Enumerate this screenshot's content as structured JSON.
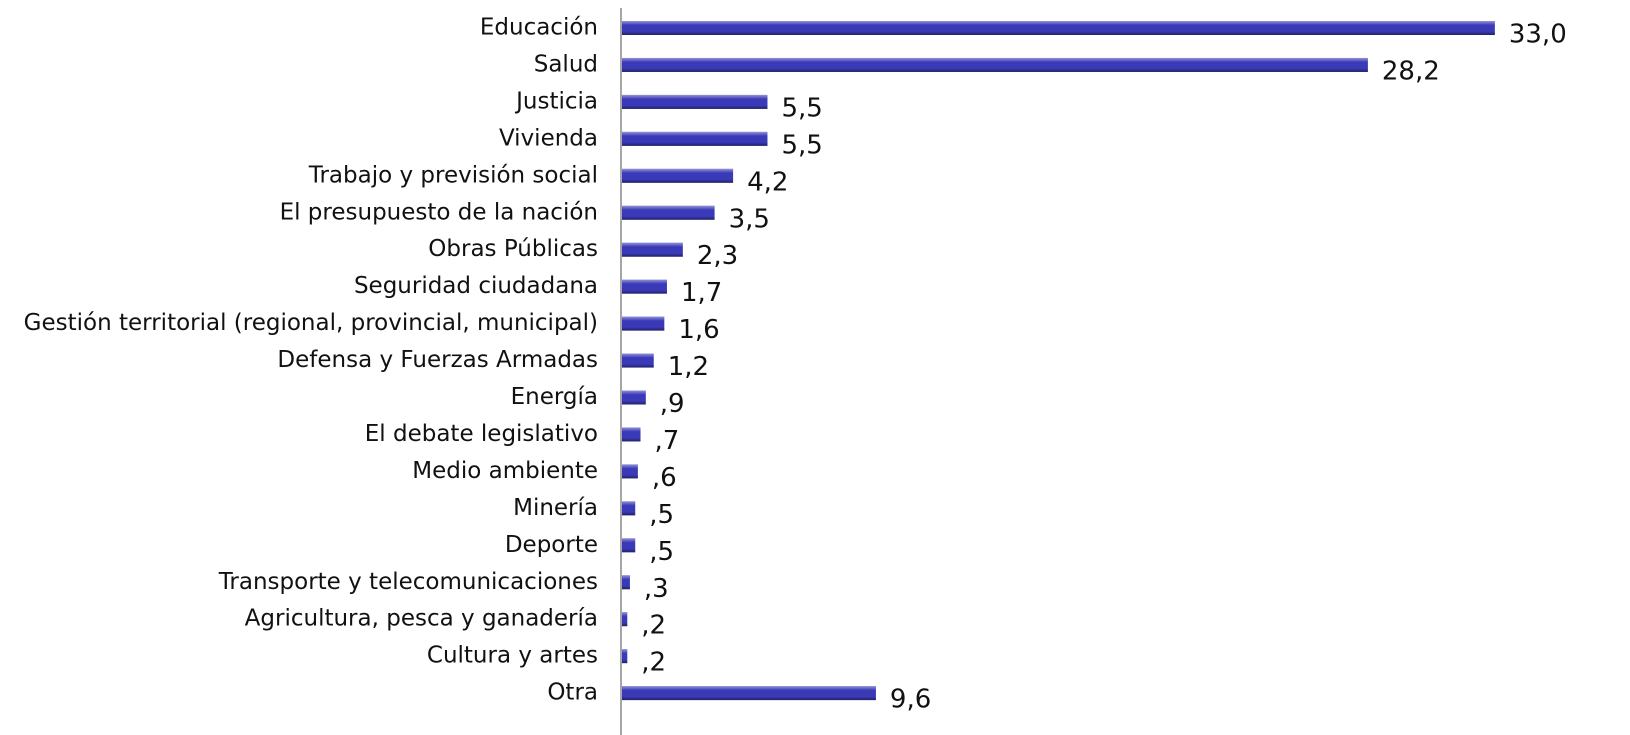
{
  "chart_data": {
    "type": "bar",
    "orientation": "horizontal",
    "color": "#3a3ab8",
    "categories": [
      "Educación",
      "Salud",
      "Justicia",
      "Vivienda",
      "Trabajo y previsión social",
      "El presupuesto de la nación",
      "Obras Públicas",
      "Seguridad ciudadana",
      "Gestión territorial (regional, provincial, municipal)",
      "Defensa y Fuerzas Armadas",
      "Energía",
      "El debate legislativo",
      "Medio ambiente",
      "Minería",
      "Deporte",
      "Transporte y telecomunicaciones",
      "Agricultura, pesca y ganadería",
      "Cultura y artes",
      "Otra"
    ],
    "values": [
      33.0,
      28.2,
      5.5,
      5.5,
      4.2,
      3.5,
      2.3,
      1.7,
      1.6,
      1.2,
      0.9,
      0.7,
      0.6,
      0.5,
      0.5,
      0.3,
      0.2,
      0.2,
      9.6
    ],
    "value_labels": [
      "33,0",
      "28,2",
      "5,5",
      "5,5",
      "4,2",
      "3,5",
      "2,3",
      "1,7",
      "1,6",
      "1,2",
      ",9",
      ",7",
      ",6",
      ",5",
      ",5",
      ",3",
      ",2",
      ",2",
      "9,6"
    ]
  }
}
